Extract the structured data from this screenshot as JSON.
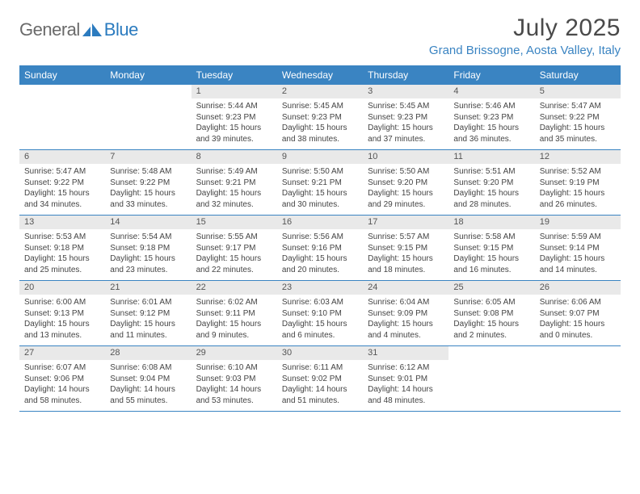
{
  "brand": {
    "word1": "General",
    "word2": "Blue",
    "icon_color": "#2b7bbf"
  },
  "header": {
    "month_title": "July 2025",
    "location": "Grand Brissogne, Aosta Valley, Italy"
  },
  "colors": {
    "header_bg": "#3a84c2",
    "header_text": "#ffffff",
    "numbar_bg": "#e9e9e9",
    "rule": "#3a84c2"
  },
  "day_names": [
    "Sunday",
    "Monday",
    "Tuesday",
    "Wednesday",
    "Thursday",
    "Friday",
    "Saturday"
  ],
  "weeks": [
    [
      {
        "n": "",
        "sr": "",
        "ss": "",
        "dl": ""
      },
      {
        "n": "",
        "sr": "",
        "ss": "",
        "dl": ""
      },
      {
        "n": "1",
        "sr": "Sunrise: 5:44 AM",
        "ss": "Sunset: 9:23 PM",
        "dl": "Daylight: 15 hours and 39 minutes."
      },
      {
        "n": "2",
        "sr": "Sunrise: 5:45 AM",
        "ss": "Sunset: 9:23 PM",
        "dl": "Daylight: 15 hours and 38 minutes."
      },
      {
        "n": "3",
        "sr": "Sunrise: 5:45 AM",
        "ss": "Sunset: 9:23 PM",
        "dl": "Daylight: 15 hours and 37 minutes."
      },
      {
        "n": "4",
        "sr": "Sunrise: 5:46 AM",
        "ss": "Sunset: 9:23 PM",
        "dl": "Daylight: 15 hours and 36 minutes."
      },
      {
        "n": "5",
        "sr": "Sunrise: 5:47 AM",
        "ss": "Sunset: 9:22 PM",
        "dl": "Daylight: 15 hours and 35 minutes."
      }
    ],
    [
      {
        "n": "6",
        "sr": "Sunrise: 5:47 AM",
        "ss": "Sunset: 9:22 PM",
        "dl": "Daylight: 15 hours and 34 minutes."
      },
      {
        "n": "7",
        "sr": "Sunrise: 5:48 AM",
        "ss": "Sunset: 9:22 PM",
        "dl": "Daylight: 15 hours and 33 minutes."
      },
      {
        "n": "8",
        "sr": "Sunrise: 5:49 AM",
        "ss": "Sunset: 9:21 PM",
        "dl": "Daylight: 15 hours and 32 minutes."
      },
      {
        "n": "9",
        "sr": "Sunrise: 5:50 AM",
        "ss": "Sunset: 9:21 PM",
        "dl": "Daylight: 15 hours and 30 minutes."
      },
      {
        "n": "10",
        "sr": "Sunrise: 5:50 AM",
        "ss": "Sunset: 9:20 PM",
        "dl": "Daylight: 15 hours and 29 minutes."
      },
      {
        "n": "11",
        "sr": "Sunrise: 5:51 AM",
        "ss": "Sunset: 9:20 PM",
        "dl": "Daylight: 15 hours and 28 minutes."
      },
      {
        "n": "12",
        "sr": "Sunrise: 5:52 AM",
        "ss": "Sunset: 9:19 PM",
        "dl": "Daylight: 15 hours and 26 minutes."
      }
    ],
    [
      {
        "n": "13",
        "sr": "Sunrise: 5:53 AM",
        "ss": "Sunset: 9:18 PM",
        "dl": "Daylight: 15 hours and 25 minutes."
      },
      {
        "n": "14",
        "sr": "Sunrise: 5:54 AM",
        "ss": "Sunset: 9:18 PM",
        "dl": "Daylight: 15 hours and 23 minutes."
      },
      {
        "n": "15",
        "sr": "Sunrise: 5:55 AM",
        "ss": "Sunset: 9:17 PM",
        "dl": "Daylight: 15 hours and 22 minutes."
      },
      {
        "n": "16",
        "sr": "Sunrise: 5:56 AM",
        "ss": "Sunset: 9:16 PM",
        "dl": "Daylight: 15 hours and 20 minutes."
      },
      {
        "n": "17",
        "sr": "Sunrise: 5:57 AM",
        "ss": "Sunset: 9:15 PM",
        "dl": "Daylight: 15 hours and 18 minutes."
      },
      {
        "n": "18",
        "sr": "Sunrise: 5:58 AM",
        "ss": "Sunset: 9:15 PM",
        "dl": "Daylight: 15 hours and 16 minutes."
      },
      {
        "n": "19",
        "sr": "Sunrise: 5:59 AM",
        "ss": "Sunset: 9:14 PM",
        "dl": "Daylight: 15 hours and 14 minutes."
      }
    ],
    [
      {
        "n": "20",
        "sr": "Sunrise: 6:00 AM",
        "ss": "Sunset: 9:13 PM",
        "dl": "Daylight: 15 hours and 13 minutes."
      },
      {
        "n": "21",
        "sr": "Sunrise: 6:01 AM",
        "ss": "Sunset: 9:12 PM",
        "dl": "Daylight: 15 hours and 11 minutes."
      },
      {
        "n": "22",
        "sr": "Sunrise: 6:02 AM",
        "ss": "Sunset: 9:11 PM",
        "dl": "Daylight: 15 hours and 9 minutes."
      },
      {
        "n": "23",
        "sr": "Sunrise: 6:03 AM",
        "ss": "Sunset: 9:10 PM",
        "dl": "Daylight: 15 hours and 6 minutes."
      },
      {
        "n": "24",
        "sr": "Sunrise: 6:04 AM",
        "ss": "Sunset: 9:09 PM",
        "dl": "Daylight: 15 hours and 4 minutes."
      },
      {
        "n": "25",
        "sr": "Sunrise: 6:05 AM",
        "ss": "Sunset: 9:08 PM",
        "dl": "Daylight: 15 hours and 2 minutes."
      },
      {
        "n": "26",
        "sr": "Sunrise: 6:06 AM",
        "ss": "Sunset: 9:07 PM",
        "dl": "Daylight: 15 hours and 0 minutes."
      }
    ],
    [
      {
        "n": "27",
        "sr": "Sunrise: 6:07 AM",
        "ss": "Sunset: 9:06 PM",
        "dl": "Daylight: 14 hours and 58 minutes."
      },
      {
        "n": "28",
        "sr": "Sunrise: 6:08 AM",
        "ss": "Sunset: 9:04 PM",
        "dl": "Daylight: 14 hours and 55 minutes."
      },
      {
        "n": "29",
        "sr": "Sunrise: 6:10 AM",
        "ss": "Sunset: 9:03 PM",
        "dl": "Daylight: 14 hours and 53 minutes."
      },
      {
        "n": "30",
        "sr": "Sunrise: 6:11 AM",
        "ss": "Sunset: 9:02 PM",
        "dl": "Daylight: 14 hours and 51 minutes."
      },
      {
        "n": "31",
        "sr": "Sunrise: 6:12 AM",
        "ss": "Sunset: 9:01 PM",
        "dl": "Daylight: 14 hours and 48 minutes."
      },
      {
        "n": "",
        "sr": "",
        "ss": "",
        "dl": ""
      },
      {
        "n": "",
        "sr": "",
        "ss": "",
        "dl": ""
      }
    ]
  ]
}
